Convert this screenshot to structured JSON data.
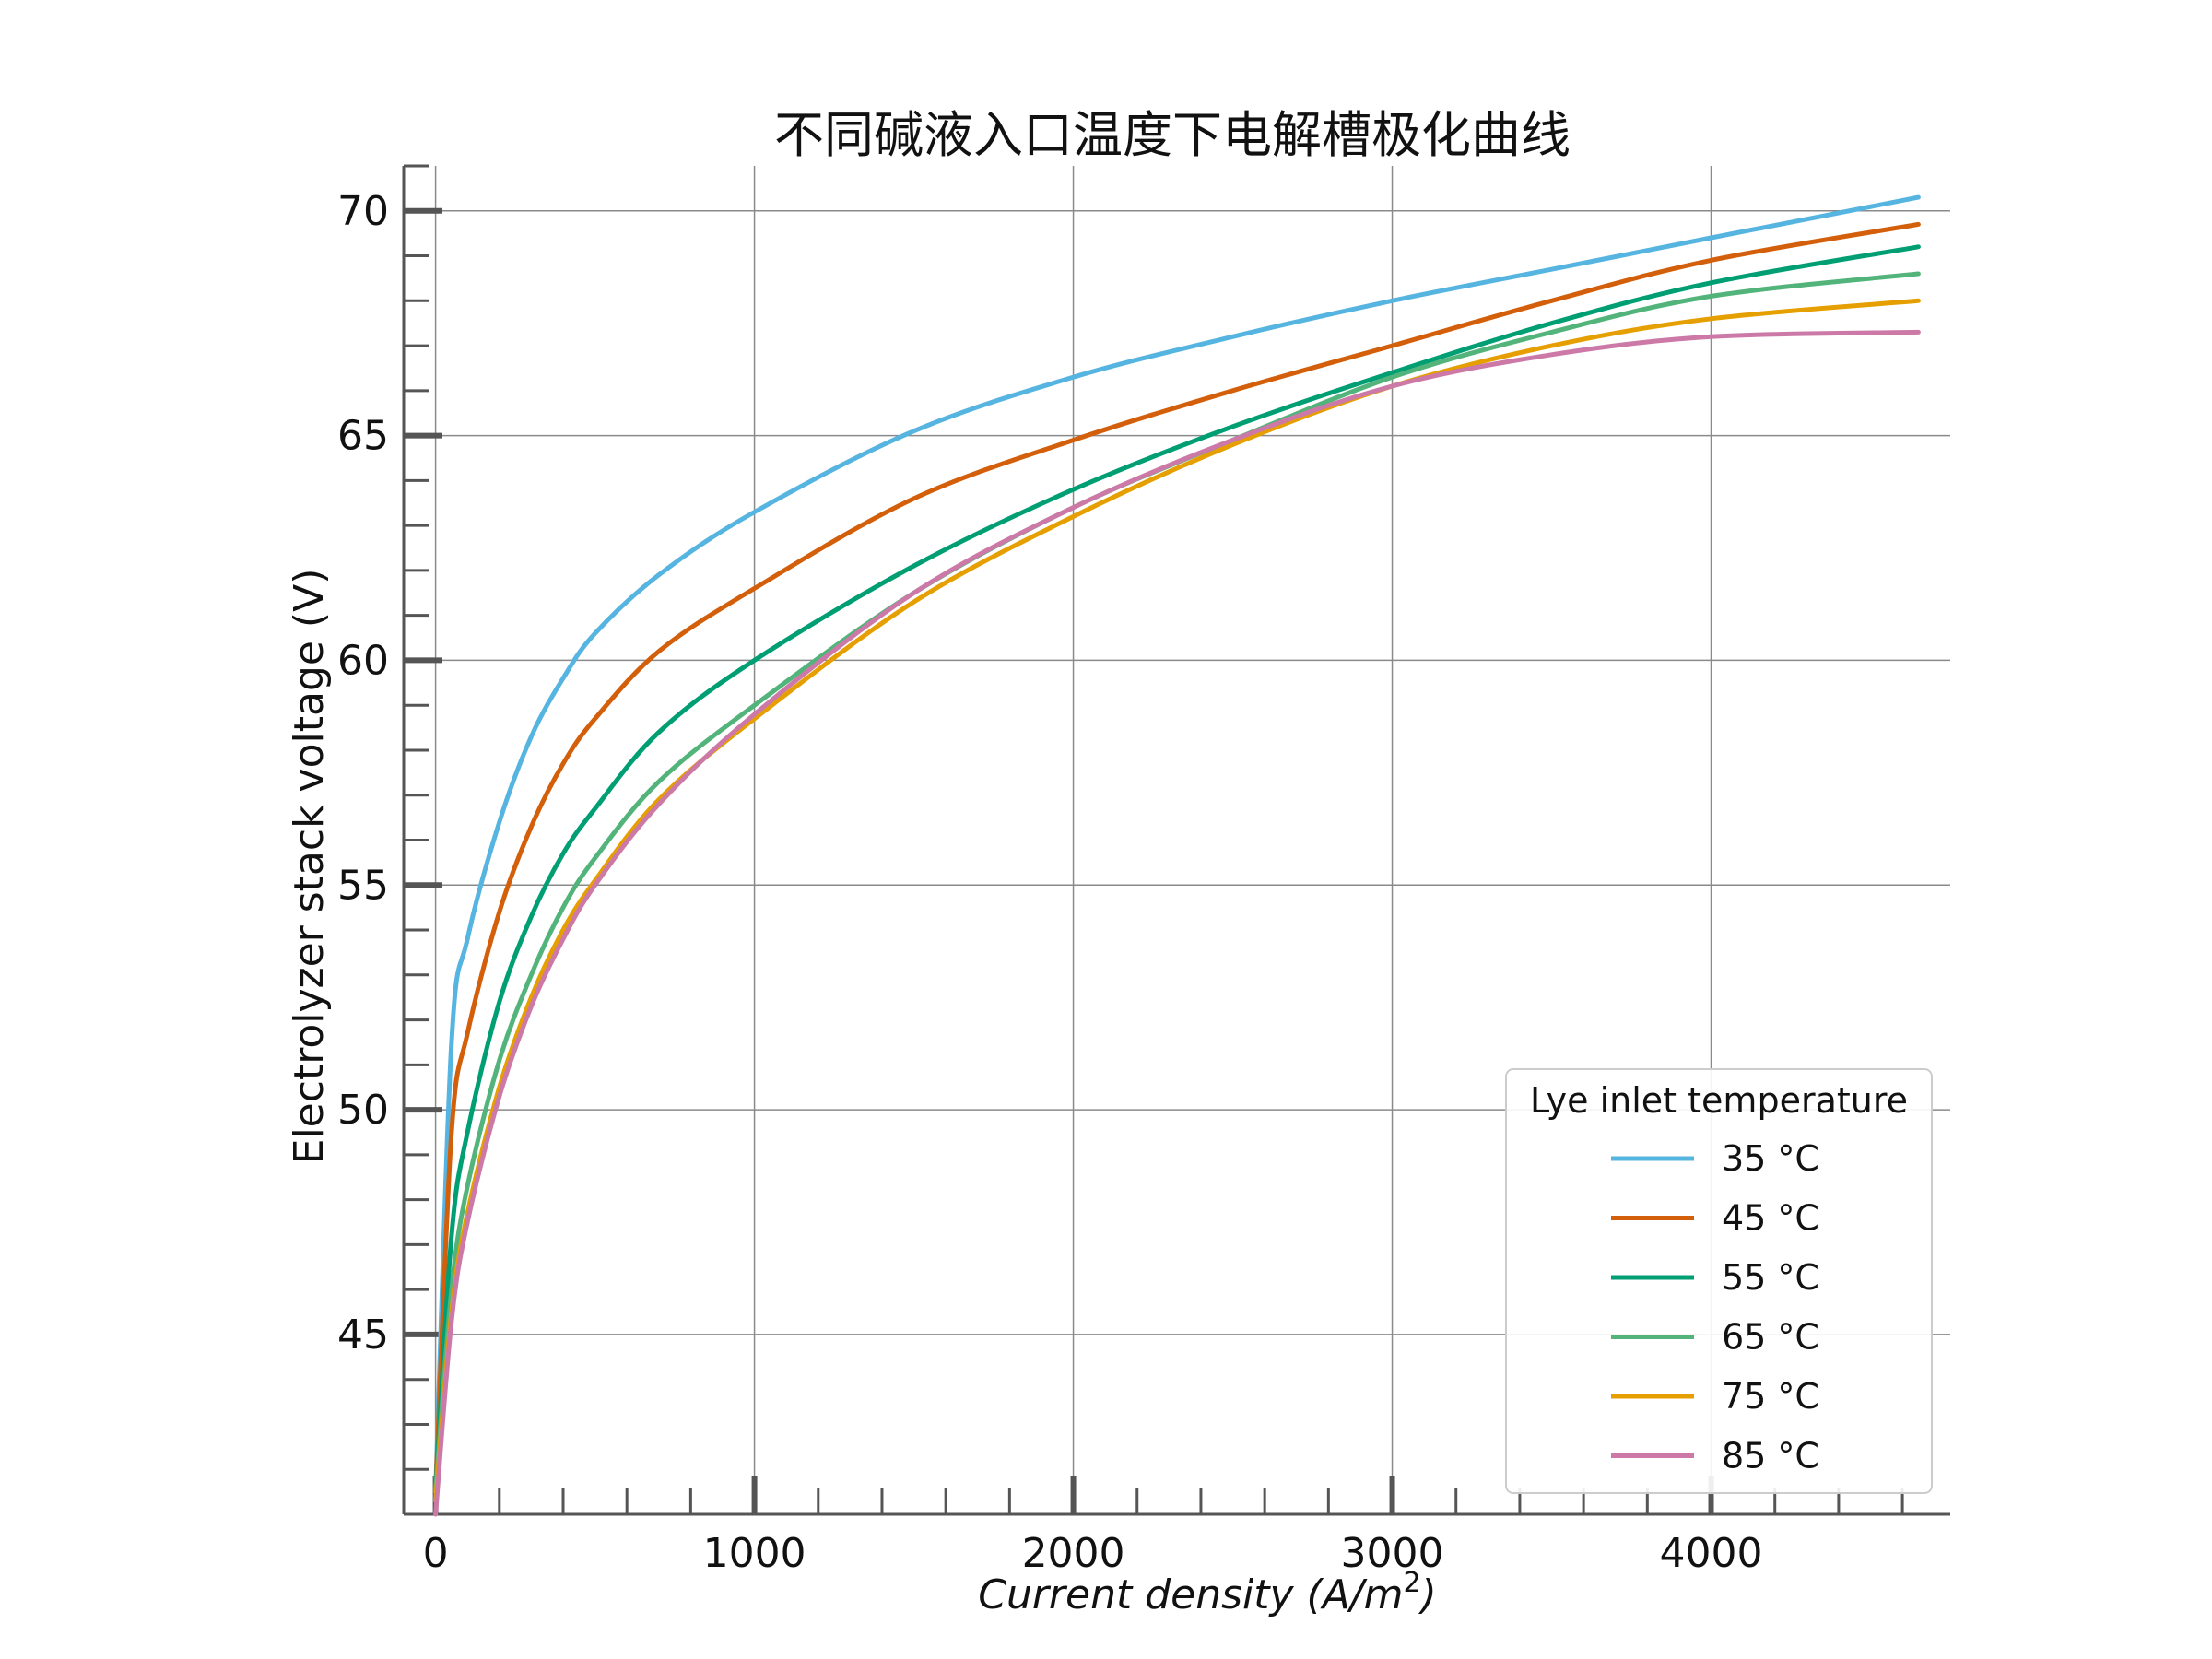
{
  "chart_data": {
    "type": "line",
    "title": "不同碱液入口温度下电解槽极化曲线",
    "xlabel_main": "Current density (",
    "xlabel_unit": "A/m",
    "xlabel_sup": "2",
    "xlabel_close": ")",
    "ylabel": "Electrolyzer stack voltage (V)",
    "xlim": [
      -100,
      4750
    ],
    "ylim": [
      41,
      71
    ],
    "x_ticks": [
      0,
      1000,
      2000,
      3000,
      4000
    ],
    "x_tick_labels": [
      "0",
      "1000",
      "2000",
      "3000",
      "4000"
    ],
    "y_ticks": [
      45,
      50,
      55,
      60,
      65,
      70
    ],
    "y_tick_labels": [
      "45",
      "50",
      "55",
      "60",
      "65",
      "70"
    ],
    "grid": true,
    "legend": {
      "title": "Lye inlet temperature",
      "placement": "lower-right"
    },
    "x": [
      0,
      50,
      100,
      200,
      300,
      400,
      500,
      700,
      1000,
      1500,
      2000,
      2500,
      3000,
      3500,
      4000,
      4650
    ],
    "series": [
      {
        "name": "35 °C",
        "color": "#56b4e0",
        "values": [
          41.5,
          51.5,
          53.8,
          56.4,
          58.3,
          59.6,
          60.6,
          61.9,
          63.3,
          65.1,
          66.3,
          67.2,
          68.0,
          68.7,
          69.4,
          70.3
        ]
      },
      {
        "name": "45 °C",
        "color": "#d35f0a",
        "values": [
          41.5,
          49.5,
          51.7,
          54.4,
          56.3,
          57.7,
          58.7,
          60.2,
          61.6,
          63.6,
          64.9,
          66.0,
          67.0,
          68.0,
          68.9,
          69.7
        ]
      },
      {
        "name": "55 °C",
        "color": "#009e73",
        "values": [
          41.5,
          47.2,
          49.5,
          52.4,
          54.3,
          55.7,
          56.7,
          58.4,
          60.0,
          62.1,
          63.8,
          65.2,
          66.4,
          67.5,
          68.4,
          69.2
        ]
      },
      {
        "name": "65 °C",
        "color": "#52b47a",
        "values": [
          41.5,
          46.0,
          48.3,
          51.1,
          53.0,
          54.5,
          55.6,
          57.3,
          59.0,
          61.5,
          63.4,
          64.9,
          66.3,
          67.3,
          68.1,
          68.6
        ]
      },
      {
        "name": "75 °C",
        "color": "#e69f00",
        "values": [
          41.3,
          45.5,
          47.7,
          50.5,
          52.5,
          54.0,
          55.1,
          56.9,
          58.7,
          61.3,
          63.2,
          64.8,
          66.1,
          67.0,
          67.6,
          68.0
        ]
      },
      {
        "name": "85 °C",
        "color": "#cc79a7",
        "values": [
          41.0,
          45.3,
          47.5,
          50.3,
          52.3,
          53.8,
          55.0,
          56.8,
          58.8,
          61.5,
          63.4,
          64.9,
          66.1,
          66.8,
          67.2,
          67.3
        ]
      }
    ]
  }
}
